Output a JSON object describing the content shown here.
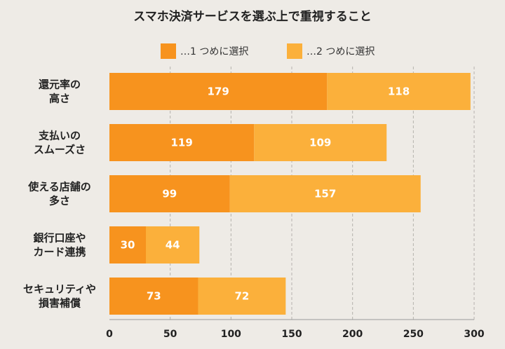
{
  "chart_data": {
    "type": "bar",
    "orientation": "horizontal",
    "stacked": true,
    "title": "スマホ決済サービスを選ぶ上で重視すること",
    "categories": [
      [
        "還元率の",
        "高さ"
      ],
      [
        "支払いの",
        "スムーズさ"
      ],
      [
        "使える店舗の",
        "多さ"
      ],
      [
        "銀行口座や",
        "カード連携"
      ],
      [
        "セキュリティや",
        "損害補償"
      ]
    ],
    "series": [
      {
        "name": "…1 つめに選択",
        "color": "#f7931e",
        "values": [
          179,
          119,
          99,
          30,
          73
        ]
      },
      {
        "name": "…2 つめに選択",
        "color": "#fbb03b",
        "values": [
          118,
          109,
          157,
          44,
          72
        ]
      }
    ],
    "xlim": [
      0,
      300
    ],
    "xticks": [
      0,
      50,
      100,
      150,
      200,
      250,
      300
    ],
    "grid": true,
    "legend_position": "top"
  }
}
